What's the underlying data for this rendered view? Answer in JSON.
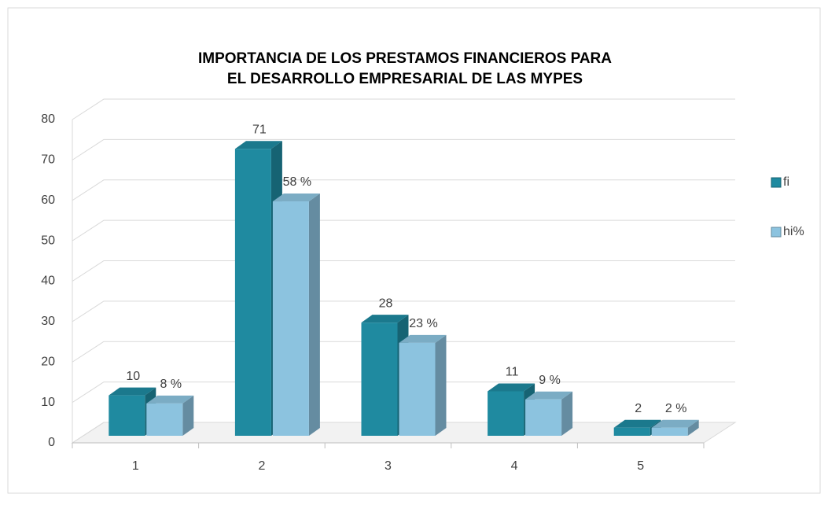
{
  "chart_data": {
    "type": "bar3d",
    "title": [
      "IMPORTANCIA DE LOS PRESTAMOS FINANCIEROS PARA",
      "EL DESARROLLO EMPRESARIAL DE LAS MYPES"
    ],
    "categories": [
      "1",
      "2",
      "3",
      "4",
      "5"
    ],
    "series": [
      {
        "name": "fi",
        "color": "#1f8aa0",
        "values": [
          10,
          71,
          28,
          11,
          2
        ]
      },
      {
        "name": "hi%",
        "color": "#8cc3df",
        "values": [
          8,
          58,
          23,
          9,
          2
        ],
        "value_labels": [
          "8 %",
          "58 %",
          "23 %",
          "9 %",
          "2 %"
        ]
      }
    ],
    "ylim": [
      0,
      80
    ],
    "yticks": [
      0,
      10,
      20,
      30,
      40,
      50,
      60,
      70,
      80
    ],
    "grid": true,
    "legend": "right"
  }
}
